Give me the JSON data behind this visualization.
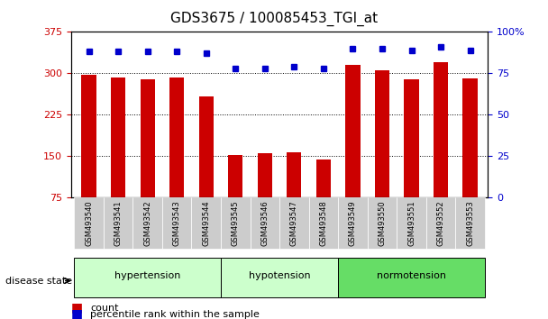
{
  "title": "GDS3675 / 100085453_TGI_at",
  "samples": [
    "GSM493540",
    "GSM493541",
    "GSM493542",
    "GSM493543",
    "GSM493544",
    "GSM493545",
    "GSM493546",
    "GSM493547",
    "GSM493548",
    "GSM493549",
    "GSM493550",
    "GSM493551",
    "GSM493552",
    "GSM493553"
  ],
  "counts": [
    297,
    292,
    290,
    293,
    258,
    152,
    155,
    157,
    145,
    315,
    305,
    290,
    320,
    291
  ],
  "percentiles": [
    88,
    88,
    88,
    88,
    87,
    78,
    78,
    79,
    78,
    90,
    90,
    89,
    91,
    89
  ],
  "groups": [
    {
      "label": "hypertension",
      "start": 0,
      "end": 5,
      "color": "#ccffcc"
    },
    {
      "label": "hypotension",
      "start": 5,
      "end": 9,
      "color": "#ccffcc"
    },
    {
      "label": "normotension",
      "start": 9,
      "end": 14,
      "color": "#66ee66"
    }
  ],
  "group_colors": [
    "#ddffdd",
    "#ddffdd",
    "#66dd66"
  ],
  "bar_color": "#cc0000",
  "dot_color": "#0000cc",
  "ylim_left": [
    75,
    375
  ],
  "ylim_right": [
    0,
    100
  ],
  "yticks_left": [
    75,
    150,
    225,
    300,
    375
  ],
  "yticks_right": [
    0,
    25,
    50,
    75,
    100
  ],
  "grid_values": [
    150,
    225,
    300
  ],
  "background_color": "#ffffff",
  "tick_label_bg": "#cccccc"
}
